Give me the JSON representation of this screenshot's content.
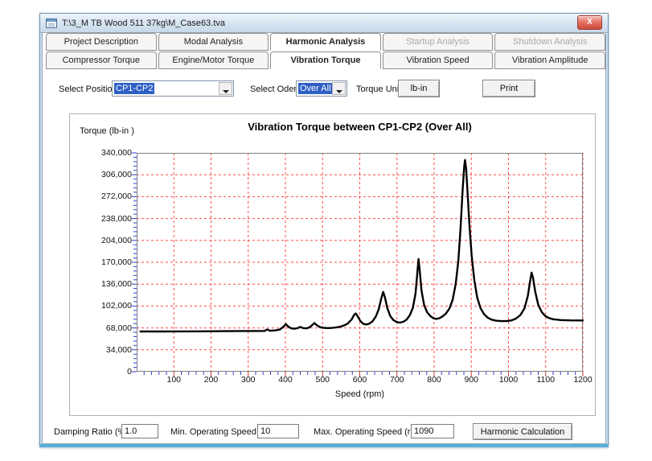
{
  "window": {
    "title": "T:\\3_M TB Wood 511 37kg\\M_Case63.tva",
    "close_glyph": "X"
  },
  "tabs_primary": [
    {
      "label": "Project Description",
      "state": "normal"
    },
    {
      "label": "Modal Analysis",
      "state": "normal"
    },
    {
      "label": "Harmonic Analysis",
      "state": "active"
    },
    {
      "label": "Startup Analysis",
      "state": "disabled"
    },
    {
      "label": "Shutdown Analysis",
      "state": "disabled"
    }
  ],
  "tabs_secondary": [
    {
      "label": "Compressor Torque",
      "state": "normal"
    },
    {
      "label": "Engine/Motor Torque",
      "state": "normal"
    },
    {
      "label": "Vibration Torque",
      "state": "active"
    },
    {
      "label": "Vibration Speed",
      "state": "normal"
    },
    {
      "label": "Vibration Amplitude",
      "state": "normal"
    }
  ],
  "controls": {
    "select_position_label": "Select Position:",
    "select_position_value": "CP1-CP2",
    "select_order_label": "Select Oder:",
    "select_order_value": "Over All",
    "torque_unit_label": "Torque Unit:",
    "torque_unit_button": "lb-in",
    "print_button": "Print"
  },
  "bottom": {
    "damping_label": "Damping Ratio (%)",
    "damping_value": "1.0",
    "min_speed_label": "Min. Operating Speed (rpm)",
    "min_speed_value": "10",
    "max_speed_label": "Max. Operating Speed (rpm)",
    "max_speed_value": "1090",
    "calc_button": "Harmonic Calculation"
  },
  "chart_data": {
    "type": "line",
    "title": "Vibration Torque between CP1-CP2 (Over All)",
    "xlabel": "Speed (rpm)",
    "ylabel": "Torque (lb-in )",
    "xlim": [
      0,
      1200
    ],
    "ylim": [
      0,
      340000
    ],
    "x_tick_step": 100,
    "x_minor_step": 20,
    "y_tick_step": 34000,
    "y_minor_step": 6800,
    "grid": {
      "color": "#ff4a4a",
      "style": "dashed",
      "on": true
    },
    "frame_color": "#808080",
    "minor_tick_color": "#2f3fd3",
    "x_major_tick_color": "#d03030",
    "line_color": "#000000",
    "legend": "none",
    "series": [
      {
        "name": "Vibration Torque CP1-CP2 (Over All)",
        "points": [
          [
            10,
            62500
          ],
          [
            60,
            62500
          ],
          [
            120,
            62600
          ],
          [
            180,
            62800
          ],
          [
            240,
            63000
          ],
          [
            300,
            63200
          ],
          [
            330,
            63300
          ],
          [
            344,
            63400
          ],
          [
            351,
            65600
          ],
          [
            358,
            63600
          ],
          [
            372,
            64100
          ],
          [
            385,
            65500
          ],
          [
            395,
            70000
          ],
          [
            401,
            74000
          ],
          [
            407,
            70500
          ],
          [
            415,
            67500
          ],
          [
            425,
            66800
          ],
          [
            433,
            67800
          ],
          [
            440,
            69600
          ],
          [
            447,
            67900
          ],
          [
            456,
            67200
          ],
          [
            465,
            69000
          ],
          [
            473,
            73000
          ],
          [
            478,
            75600
          ],
          [
            484,
            72500
          ],
          [
            492,
            69500
          ],
          [
            502,
            68200
          ],
          [
            515,
            67800
          ],
          [
            528,
            68200
          ],
          [
            542,
            69300
          ],
          [
            555,
            71200
          ],
          [
            567,
            74500
          ],
          [
            578,
            81000
          ],
          [
            585,
            88500
          ],
          [
            589,
            90500
          ],
          [
            594,
            86500
          ],
          [
            602,
            78500
          ],
          [
            610,
            74200
          ],
          [
            617,
            73400
          ],
          [
            625,
            74500
          ],
          [
            634,
            78000
          ],
          [
            643,
            85500
          ],
          [
            651,
            97000
          ],
          [
            658,
            114000
          ],
          [
            663,
            124000
          ],
          [
            668,
            115000
          ],
          [
            674,
            99000
          ],
          [
            682,
            86500
          ],
          [
            690,
            80500
          ],
          [
            699,
            77300
          ],
          [
            708,
            76200
          ],
          [
            717,
            77500
          ],
          [
            726,
            81000
          ],
          [
            735,
            88000
          ],
          [
            743,
            99500
          ],
          [
            750,
            122000
          ],
          [
            755,
            155000
          ],
          [
            758,
            175000
          ],
          [
            761,
            158000
          ],
          [
            766,
            126000
          ],
          [
            773,
            104000
          ],
          [
            781,
            92500
          ],
          [
            790,
            86200
          ],
          [
            799,
            82800
          ],
          [
            807,
            82000
          ],
          [
            815,
            83200
          ],
          [
            823,
            86000
          ],
          [
            832,
            90500
          ],
          [
            841,
            98000
          ],
          [
            850,
            112000
          ],
          [
            858,
            136000
          ],
          [
            865,
            172000
          ],
          [
            871,
            222000
          ],
          [
            877,
            285000
          ],
          [
            881,
            320000
          ],
          [
            883,
            329000
          ],
          [
            886,
            316000
          ],
          [
            890,
            278000
          ],
          [
            895,
            228000
          ],
          [
            901,
            180000
          ],
          [
            908,
            142000
          ],
          [
            916,
            115000
          ],
          [
            925,
            98500
          ],
          [
            934,
            89500
          ],
          [
            944,
            84000
          ],
          [
            954,
            81000
          ],
          [
            966,
            79200
          ],
          [
            980,
            78600
          ],
          [
            995,
            78600
          ],
          [
            1008,
            79800
          ],
          [
            1020,
            82500
          ],
          [
            1032,
            88000
          ],
          [
            1043,
            98500
          ],
          [
            1052,
            118000
          ],
          [
            1058,
            140000
          ],
          [
            1062,
            154000
          ],
          [
            1066,
            146000
          ],
          [
            1072,
            124000
          ],
          [
            1080,
            104000
          ],
          [
            1089,
            93000
          ],
          [
            1098,
            87000
          ],
          [
            1108,
            83500
          ],
          [
            1120,
            81500
          ],
          [
            1140,
            80200
          ],
          [
            1165,
            79700
          ],
          [
            1200,
            79600
          ]
        ]
      }
    ]
  }
}
